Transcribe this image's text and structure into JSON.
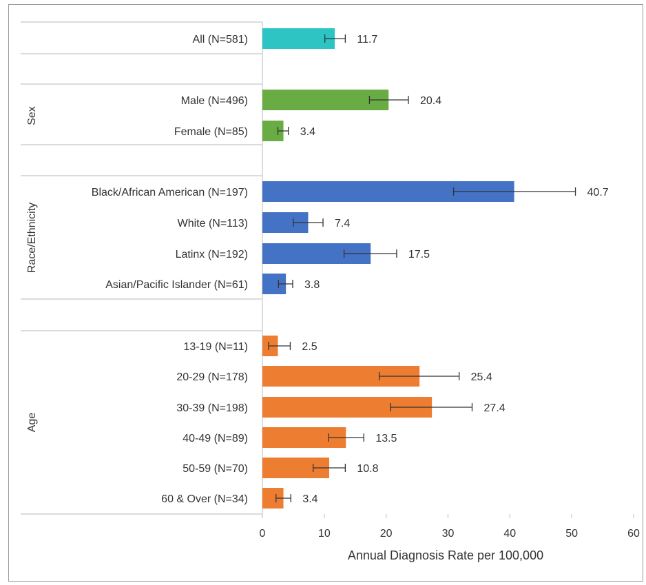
{
  "chart_data": {
    "type": "bar",
    "orientation": "horizontal",
    "xlabel": "Annual Diagnosis Rate per 100,000",
    "xlim": [
      0,
      60
    ],
    "xticks": [
      0,
      10,
      20,
      30,
      40,
      50,
      60
    ],
    "error_bars": true,
    "groups": [
      {
        "name": "",
        "color": "#2ec4c4",
        "bars": [
          {
            "label": "All (N=581)",
            "value": 11.7,
            "value_label": "11.7",
            "err_low": 10.1,
            "err_high": 13.4
          }
        ]
      },
      {
        "name": "Sex",
        "color": "#6aac44",
        "bars": [
          {
            "label": "Male (N=496)",
            "value": 20.4,
            "value_label": "20.4",
            "err_low": 17.3,
            "err_high": 23.6
          },
          {
            "label": "Female (N=85)",
            "value": 3.4,
            "value_label": "3.4",
            "err_low": 2.5,
            "err_high": 4.2
          }
        ]
      },
      {
        "name": "Race/Ethnicity",
        "color": "#4472c4",
        "bars": [
          {
            "label": "Black/African American (N=197)",
            "value": 40.7,
            "value_label": "40.7",
            "err_low": 30.9,
            "err_high": 50.6
          },
          {
            "label": "White (N=113)",
            "value": 7.4,
            "value_label": "7.4",
            "err_low": 5.0,
            "err_high": 9.8
          },
          {
            "label": "Latinx (N=192)",
            "value": 17.5,
            "value_label": "17.5",
            "err_low": 13.2,
            "err_high": 21.7
          },
          {
            "label": "Asian/Pacific Islander (N=61)",
            "value": 3.8,
            "value_label": "3.8",
            "err_low": 2.6,
            "err_high": 4.9
          }
        ]
      },
      {
        "name": "Age",
        "color": "#ed7d31",
        "bars": [
          {
            "label": "13-19 (N=11)",
            "value": 2.5,
            "value_label": "2.5",
            "err_low": 1.0,
            "err_high": 4.5
          },
          {
            "label": "20-29 (N=178)",
            "value": 25.4,
            "value_label": "25.4",
            "err_low": 18.9,
            "err_high": 31.8
          },
          {
            "label": "30-39 (N=198)",
            "value": 27.4,
            "value_label": "27.4",
            "err_low": 20.7,
            "err_high": 33.9
          },
          {
            "label": "40-49 (N=89)",
            "value": 13.5,
            "value_label": "13.5",
            "err_low": 10.7,
            "err_high": 16.4
          },
          {
            "label": "50-59 (N=70)",
            "value": 10.8,
            "value_label": "10.8",
            "err_low": 8.2,
            "err_high": 13.4
          },
          {
            "label": "60 & Over (N=34)",
            "value": 3.4,
            "value_label": "3.4",
            "err_low": 2.2,
            "err_high": 4.6
          }
        ]
      }
    ]
  }
}
